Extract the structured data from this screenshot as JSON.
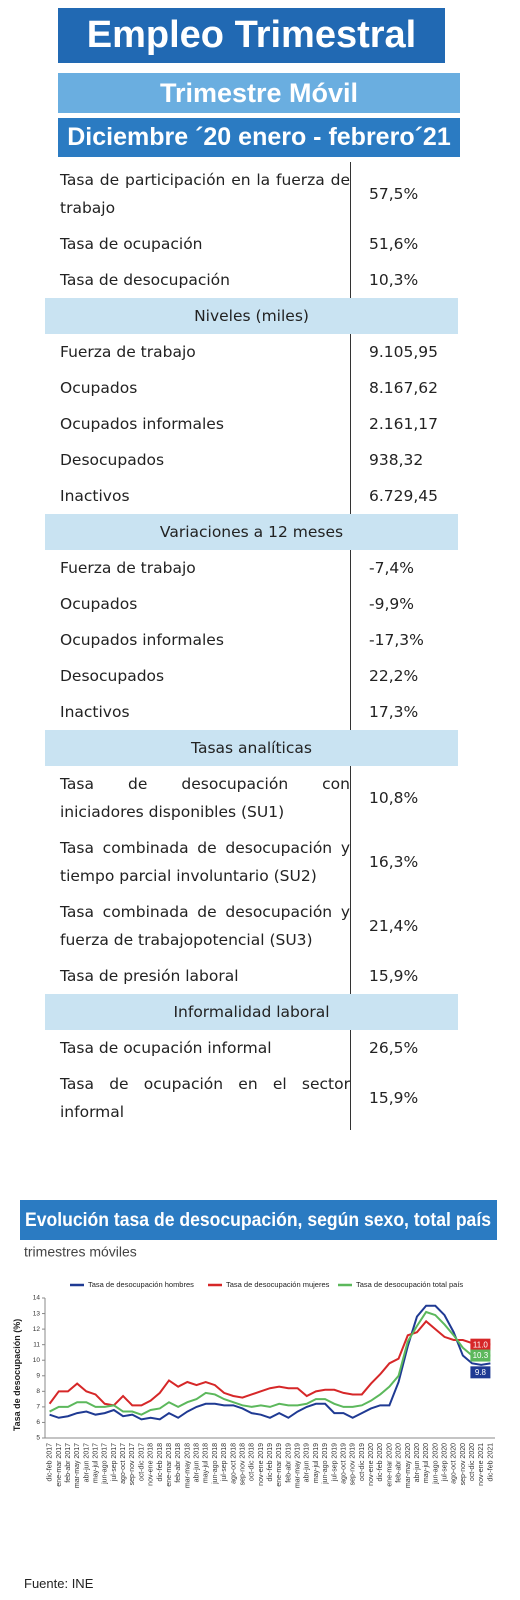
{
  "header": {
    "title": "Empleo Trimestral",
    "subtitle": "Trimestre Móvil",
    "period": "Diciembre ´20 enero - febrero´21"
  },
  "table": {
    "groups": [
      {
        "heading": null,
        "rows": [
          [
            "Tasa de participación en la fuerza de trabajo",
            "57,5%"
          ],
          [
            "Tasa de ocupación",
            "51,6%"
          ],
          [
            "Tasa de desocupación",
            "10,3%"
          ]
        ]
      },
      {
        "heading": "Niveles (miles)",
        "rows": [
          [
            "Fuerza de trabajo",
            "9.105,95"
          ],
          [
            "Ocupados",
            "8.167,62"
          ],
          [
            "Ocupados informales",
            "2.161,17"
          ],
          [
            "Desocupados",
            "938,32"
          ],
          [
            "Inactivos",
            "6.729,45"
          ]
        ]
      },
      {
        "heading": "Variaciones a 12 meses",
        "rows": [
          [
            "Fuerza de trabajo",
            "-7,4%"
          ],
          [
            "Ocupados",
            "-9,9%"
          ],
          [
            "Ocupados informales",
            "-17,3%"
          ],
          [
            "Desocupados",
            "22,2%"
          ],
          [
            "Inactivos",
            "17,3%"
          ]
        ]
      },
      {
        "heading": "Tasas analíticas",
        "rows": [
          [
            "Tasa de desocupación con iniciadores disponibles (SU1)",
            "10,8%"
          ],
          [
            "Tasa combinada de desocupación y tiempo parcial involuntario (SU2)",
            "16,3%"
          ],
          [
            "Tasa combinada de desocupación y fuerza de trabajopotencial (SU3)",
            "21,4%"
          ],
          [
            "Tasa de presión laboral",
            "15,9%"
          ]
        ]
      },
      {
        "heading": "Informalidad laboral",
        "rows": [
          [
            "Tasa de ocupación informal",
            "26,5%"
          ],
          [
            "Tasa de ocupación en el sector informal",
            "15,9%"
          ]
        ]
      }
    ]
  },
  "chart_data": {
    "type": "line",
    "title": "Evolución tasa de desocupación, según sexo, total país",
    "subtitle": "trimestres móviles",
    "y_label": "Tasa de desocupación (%)",
    "categories": [
      "dic-feb 2017",
      "ene-mar 2017",
      "feb-abr 2017",
      "mar-may 2017",
      "abr-jun 2017",
      "may-jul 2017",
      "jun-ago 2017",
      "jul-sep 2017",
      "ago-oct 2017",
      "sep-nov 2017",
      "oct-dic 2017",
      "nov-ene 2018",
      "dic-feb 2018",
      "ene-mar 2018",
      "feb-abr 2018",
      "mar-may 2018",
      "abr-jun 2018",
      "may-jul 2018",
      "jun-ago 2018",
      "jul-sep 2018",
      "ago-oct 2018",
      "sep-nov 2018",
      "oct-dic 2018",
      "nov-ene 2019",
      "dic-feb 2019",
      "ene-mar 2019",
      "feb-abr 2019",
      "mar-may 2019",
      "abr-jun 2019",
      "may-jul 2019",
      "jun-ago 2019",
      "jul-sep 2019",
      "ago-oct 2019",
      "sep-nov 2019",
      "oct-dic 2019",
      "nov-ene 2020",
      "dic-feb 2020",
      "ene-mar 2020",
      "feb-abr 2020",
      "mar-may 2020",
      "abr-jun 2020",
      "may-jul 2020",
      "jun-ago 2020",
      "jul-sep 2020",
      "ago-oct 2020",
      "sep-nov 2020",
      "oct-dic 2020",
      "nov-ene 2021",
      "dic-feb 2021"
    ],
    "series": [
      {
        "name": "Tasa de desocupación hombres",
        "color": "#1f3a93",
        "values": [
          6.5,
          6.3,
          6.4,
          6.6,
          6.7,
          6.5,
          6.6,
          6.8,
          6.4,
          6.5,
          6.2,
          6.3,
          6.2,
          6.6,
          6.3,
          6.7,
          7.0,
          7.2,
          7.2,
          7.1,
          7.1,
          6.9,
          6.6,
          6.5,
          6.3,
          6.6,
          6.3,
          6.7,
          7.0,
          7.2,
          7.2,
          6.6,
          6.6,
          6.3,
          6.6,
          6.9,
          7.1,
          7.1,
          8.6,
          10.9,
          12.8,
          13.5,
          13.5,
          12.9,
          11.8,
          10.3,
          9.8,
          9.7,
          9.8
        ],
        "value_labels": [
          null,
          null,
          null,
          null,
          null,
          null,
          null,
          null,
          null,
          null,
          null,
          null,
          null,
          null,
          null,
          null,
          null,
          null,
          null,
          null,
          null,
          null,
          null,
          null,
          null,
          null,
          null,
          null,
          null,
          null,
          null,
          null,
          null,
          null,
          null,
          null,
          null,
          null,
          null,
          null,
          null,
          null,
          null,
          null,
          null,
          null,
          null,
          null,
          "9.8"
        ]
      },
      {
        "name": "Tasa de desocupación mujeres",
        "color": "#d62728",
        "values": [
          7.2,
          8.0,
          8.0,
          8.5,
          8.0,
          7.8,
          7.2,
          7.1,
          7.7,
          7.1,
          7.1,
          7.4,
          7.9,
          8.7,
          8.3,
          8.6,
          8.4,
          8.6,
          8.4,
          7.9,
          7.7,
          7.6,
          7.8,
          8.0,
          8.2,
          8.3,
          8.2,
          8.2,
          7.7,
          8.0,
          8.1,
          8.1,
          7.9,
          7.8,
          7.8,
          8.5,
          9.1,
          9.8,
          10.1,
          11.6,
          11.8,
          12.5,
          12.0,
          11.5,
          11.3,
          11.3,
          11.1,
          11.1,
          11.0
        ],
        "value_labels": [
          null,
          null,
          null,
          null,
          null,
          null,
          null,
          null,
          null,
          null,
          null,
          null,
          null,
          null,
          null,
          null,
          null,
          null,
          null,
          null,
          null,
          null,
          null,
          null,
          null,
          null,
          null,
          null,
          null,
          null,
          null,
          null,
          null,
          null,
          null,
          null,
          null,
          null,
          null,
          null,
          null,
          null,
          null,
          null,
          null,
          null,
          null,
          null,
          "11.0"
        ]
      },
      {
        "name": "Tasa de desocupación total país",
        "color": "#5cb85c",
        "values": [
          6.7,
          7.0,
          7.0,
          7.3,
          7.3,
          7.0,
          7.0,
          7.1,
          6.7,
          6.7,
          6.5,
          6.8,
          6.9,
          7.3,
          7.0,
          7.3,
          7.5,
          7.9,
          7.8,
          7.5,
          7.3,
          7.1,
          7.0,
          7.1,
          7.0,
          7.2,
          7.1,
          7.1,
          7.2,
          7.5,
          7.5,
          7.2,
          7.0,
          7.0,
          7.1,
          7.4,
          7.8,
          8.3,
          9.0,
          11.2,
          12.2,
          13.1,
          12.9,
          12.3,
          11.6,
          10.8,
          10.3,
          10.3,
          10.3
        ],
        "value_labels": [
          null,
          null,
          null,
          null,
          null,
          null,
          null,
          null,
          null,
          null,
          null,
          null,
          null,
          null,
          null,
          null,
          null,
          null,
          null,
          null,
          null,
          null,
          null,
          null,
          null,
          null,
          null,
          null,
          null,
          null,
          null,
          null,
          null,
          null,
          null,
          null,
          null,
          null,
          null,
          null,
          null,
          null,
          null,
          null,
          null,
          null,
          null,
          null,
          "10.3"
        ]
      }
    ],
    "ylim": [
      5,
      14
    ],
    "yticks": [
      5,
      6,
      7,
      8,
      9,
      10,
      11,
      12,
      13,
      14
    ],
    "grid": false,
    "legend": "top"
  },
  "source": "Fuente: INE"
}
